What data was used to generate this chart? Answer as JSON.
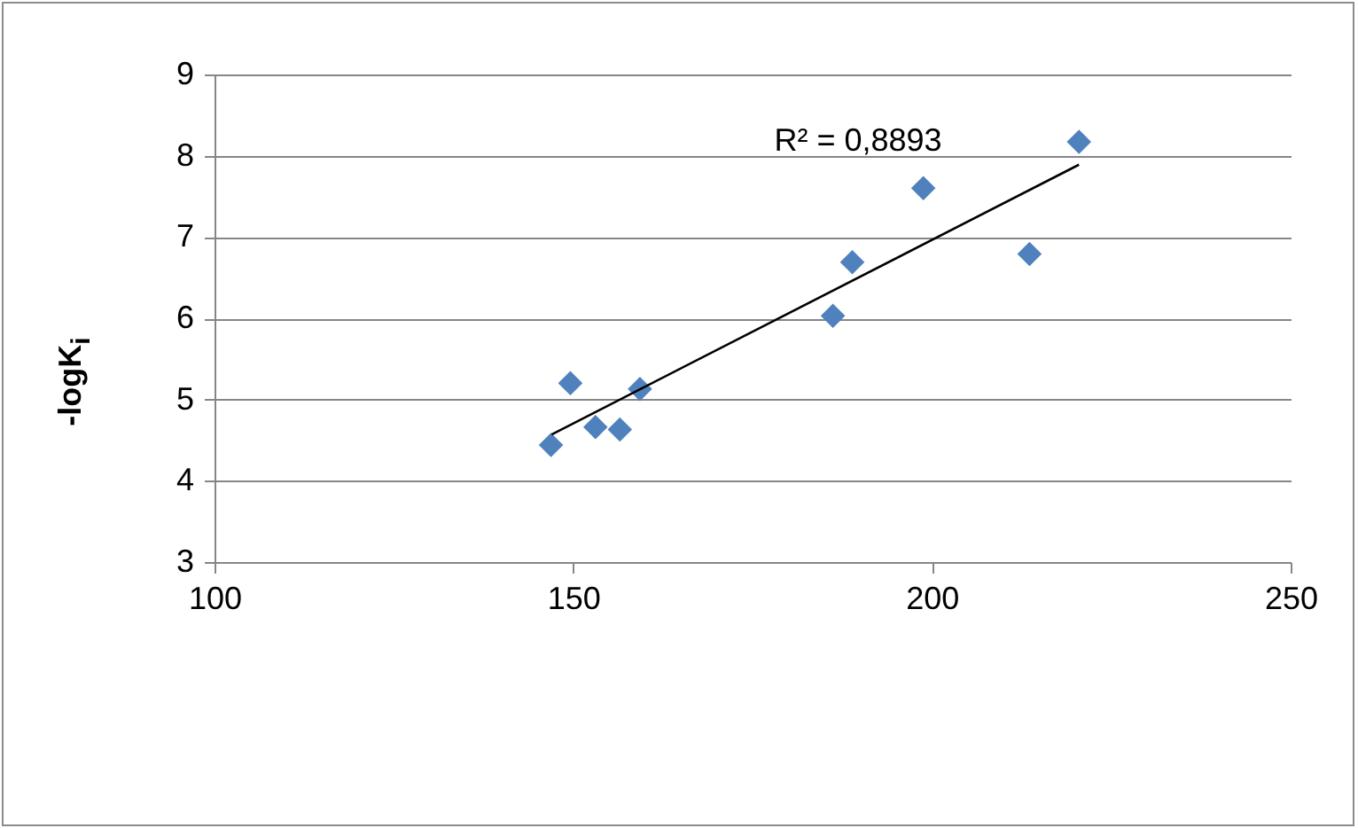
{
  "chart_data": {
    "type": "scatter",
    "ylabel": "-logK$_{i}$",
    "xlim": [
      100,
      250
    ],
    "xticks": [
      100,
      150,
      200,
      250
    ],
    "ylim": [
      3,
      9
    ],
    "yticks": [
      3,
      4,
      5,
      6,
      7,
      8,
      9
    ],
    "grid": "y",
    "marker": "diamond",
    "annotations": [
      "R² = 0,8893"
    ],
    "series": [
      {
        "color": "#4f81bd",
        "x": [
          146.9,
          149.6,
          153.1,
          156.5,
          159.3,
          186.2,
          188.9,
          198.8,
          213.6,
          220.5
        ],
        "values": [
          4.44,
          5.2,
          4.66,
          4.63,
          5.13,
          6.03,
          6.69,
          7.6,
          6.79,
          8.17
        ]
      },
      {
        "type": "line",
        "marker": "none",
        "color": "#000000",
        "x": [
          147,
          220.5
        ],
        "values": [
          4.57,
          7.89
        ]
      }
    ]
  }
}
